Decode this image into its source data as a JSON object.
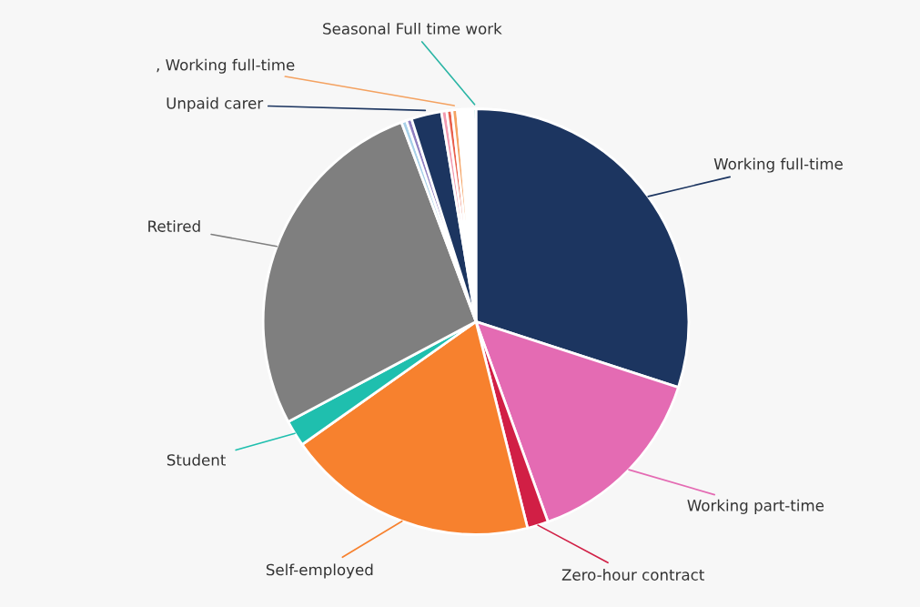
{
  "chart_data": {
    "type": "pie",
    "categories": [
      "Working full-time",
      "Working part-time",
      "Zero-hour contract",
      "Self-employed",
      "Student",
      "Retired",
      null,
      null,
      "Unpaid carer",
      null,
      null,
      ", Working full-time",
      null,
      "Seasonal Full time work"
    ],
    "values": [
      30,
      14.5,
      1.6,
      19.1,
      2,
      27.1,
      0.4,
      0.4,
      2.3,
      0.4,
      0.4,
      0.4,
      1.2,
      0.2
    ],
    "colors": [
      "#1c3560",
      "#e46bb3",
      "#d11f45",
      "#f7812e",
      "#1fbfae",
      "#7f7f7f",
      "#a7d0e8",
      "#8f7fc0",
      "#1c3560",
      "#f29ab0",
      "#e8604c",
      "#f4a261",
      "#ffffff",
      "#2bb5a5"
    ]
  }
}
